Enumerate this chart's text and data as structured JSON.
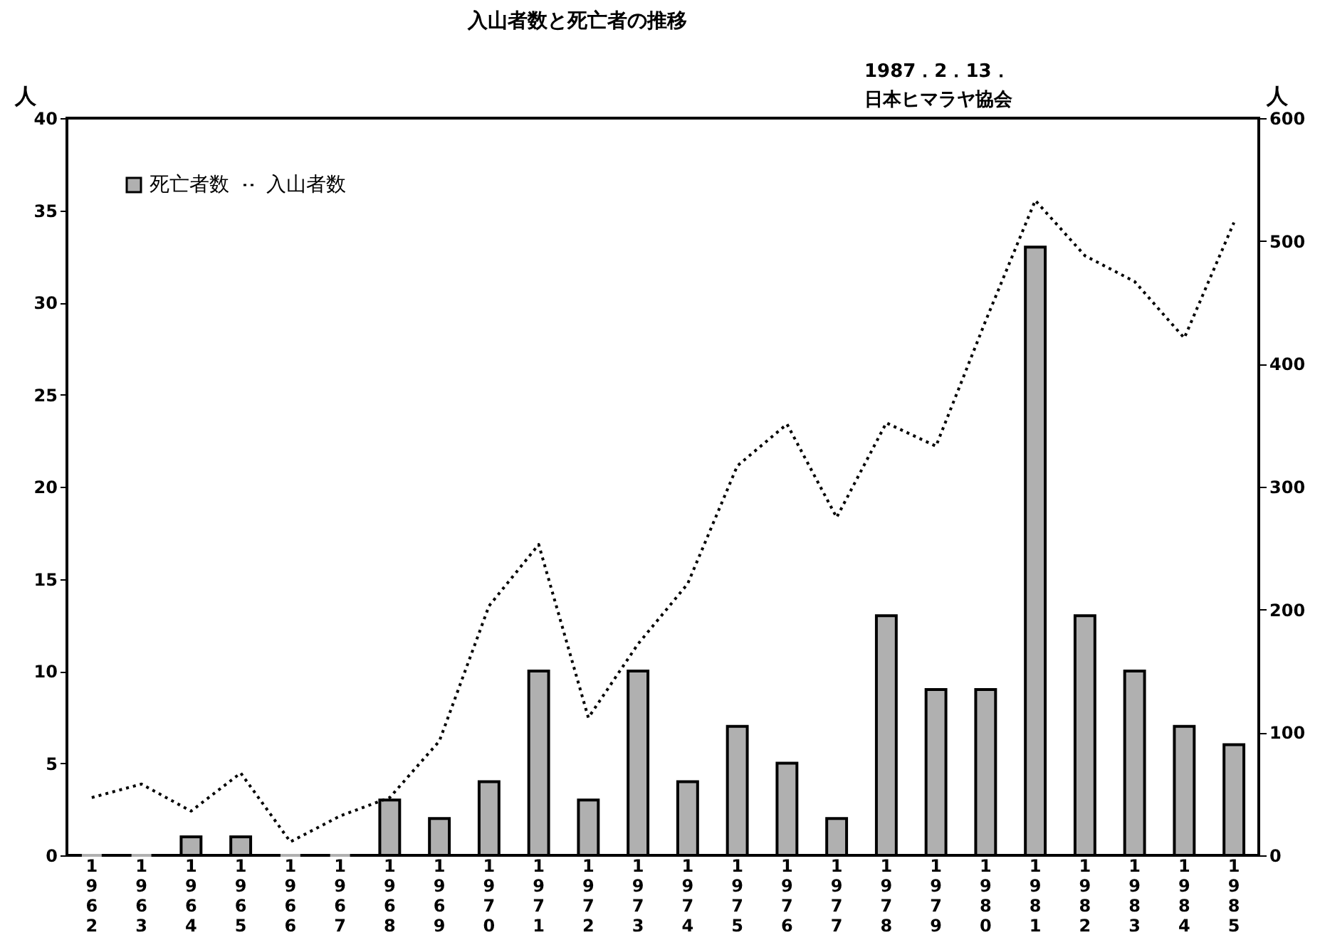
{
  "chart_data": {
    "type": "bar",
    "title": "入山者数と死亡者の推移",
    "annotations": [
      "1987．2．13．",
      "日本ヒマラヤ協会"
    ],
    "ylabel": "人",
    "y2label": "人",
    "categories": [
      "1962",
      "1963",
      "1964",
      "1965",
      "1966",
      "1967",
      "1968",
      "1969",
      "1970",
      "1971",
      "1972",
      "1973",
      "1974",
      "1975",
      "1976",
      "1977",
      "1978",
      "1979",
      "1980",
      "1981",
      "1982",
      "1983",
      "1984",
      "1985"
    ],
    "series": [
      {
        "name": "死亡者数",
        "type": "bar",
        "color": "#b0b0b0",
        "values": [
          0,
          0,
          1,
          1,
          0,
          0,
          3,
          2,
          4,
          10,
          3,
          10,
          4,
          7,
          5,
          2,
          13,
          9,
          9,
          33,
          13,
          10,
          7,
          6
        ]
      },
      {
        "name": "入山者数",
        "type": "line",
        "axis": "y2",
        "color": "#000000",
        "line_style": "dotted",
        "values": [
          47,
          58,
          36,
          67,
          11,
          32,
          47,
          93,
          203,
          253,
          112,
          172,
          221,
          317,
          351,
          275,
          352,
          333,
          435,
          533,
          488,
          467,
          421,
          515
        ]
      }
    ],
    "ylim": [
      0,
      40
    ],
    "yticks": [
      0,
      5,
      10,
      15,
      20,
      25,
      30,
      35,
      40
    ],
    "y2lim": [
      0,
      600
    ],
    "y2ticks": [
      0,
      100,
      200,
      300,
      400,
      500,
      600
    ],
    "grid": false,
    "legend": "top left"
  }
}
